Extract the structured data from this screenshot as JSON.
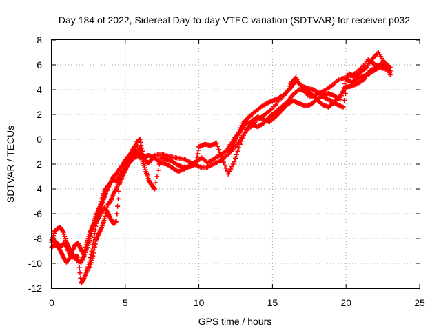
{
  "chart_data": {
    "type": "scatter",
    "title": "Day 184 of 2022, Sidereal Day-to-day VTEC variation (SDTVAR) for receiver p032",
    "xlabel": "GPS time / hours",
    "ylabel": "SDTVAR / TECUs",
    "xlim": [
      0,
      25
    ],
    "ylim": [
      -12,
      8
    ],
    "x_ticks": [
      "0",
      "5",
      "10",
      "15",
      "20",
      "25"
    ],
    "y_ticks": [
      "-12",
      "-10",
      "-8",
      "-6",
      "-4",
      "-2",
      "0",
      "2",
      "4",
      "6",
      "8"
    ],
    "grid": true,
    "marker": "+",
    "color": "#ff0000",
    "series": [
      {
        "points": [
          [
            0.0,
            -8.3
          ],
          [
            0.2,
            -7.4
          ],
          [
            0.4,
            -7.2
          ],
          [
            0.6,
            -7.1
          ],
          [
            0.8,
            -7.5
          ],
          [
            1.0,
            -8.3
          ],
          [
            1.2,
            -8.8
          ],
          [
            1.4,
            -9.3
          ],
          [
            1.6,
            -9.6
          ],
          [
            1.8,
            -9.8
          ],
          [
            2.0,
            -9.9
          ],
          [
            2.2,
            -9.4
          ],
          [
            2.4,
            -8.7
          ],
          [
            2.6,
            -8.0
          ],
          [
            2.8,
            -7.0
          ],
          [
            3.0,
            -6.2
          ],
          [
            3.2,
            -5.6
          ],
          [
            3.4,
            -5.2
          ],
          [
            3.6,
            -4.6
          ],
          [
            3.8,
            -4.0
          ],
          [
            4.0,
            -3.5
          ],
          [
            4.2,
            -3.2
          ],
          [
            4.4,
            -3.4
          ],
          [
            4.6,
            -3.0
          ],
          [
            4.8,
            -2.7
          ],
          [
            5.0,
            -2.3
          ],
          [
            5.2,
            -1.8
          ],
          [
            5.4,
            -1.3
          ],
          [
            5.6,
            -0.8
          ],
          [
            5.8,
            -0.2
          ],
          [
            6.0,
            0.0
          ],
          [
            6.2,
            -1.2
          ],
          [
            6.4,
            -1.8
          ],
          [
            6.6,
            -1.9
          ],
          [
            6.8,
            -1.6
          ],
          [
            7.0,
            -1.3
          ],
          [
            7.5,
            -1.2
          ],
          [
            8.0,
            -1.4
          ],
          [
            8.5,
            -1.5
          ],
          [
            9.0,
            -1.6
          ],
          [
            9.5,
            -1.9
          ],
          [
            10.0,
            -2.2
          ],
          [
            10.5,
            -2.3
          ],
          [
            11.0,
            -2.0
          ],
          [
            11.5,
            -1.7
          ],
          [
            12.0,
            -1.2
          ],
          [
            12.5,
            -0.6
          ],
          [
            13.0,
            0.3
          ],
          [
            13.5,
            1.0
          ],
          [
            14.0,
            1.6
          ],
          [
            14.5,
            2.0
          ],
          [
            15.0,
            2.5
          ],
          [
            15.5,
            3.2
          ],
          [
            16.0,
            3.8
          ],
          [
            16.3,
            4.6
          ],
          [
            16.6,
            5.0
          ],
          [
            17.0,
            4.2
          ],
          [
            17.5,
            3.4
          ],
          [
            18.0,
            3.6
          ],
          [
            18.5,
            3.9
          ],
          [
            19.0,
            4.3
          ],
          [
            19.5,
            4.8
          ],
          [
            20.0,
            5.0
          ],
          [
            20.5,
            5.2
          ],
          [
            21.0,
            5.7
          ],
          [
            21.5,
            6.4
          ],
          [
            22.0,
            6.0
          ],
          [
            22.5,
            5.7
          ],
          [
            23.0,
            5.5
          ]
        ]
      },
      {
        "points": [
          [
            0.0,
            -8.7
          ],
          [
            0.2,
            -8.5
          ],
          [
            0.4,
            -8.6
          ],
          [
            0.6,
            -9.0
          ],
          [
            0.8,
            -9.5
          ],
          [
            1.0,
            -9.9
          ],
          [
            1.2,
            -9.6
          ],
          [
            1.4,
            -9.0
          ],
          [
            1.6,
            -8.5
          ],
          [
            1.8,
            -8.4
          ],
          [
            2.0,
            -8.9
          ],
          [
            2.2,
            -9.3
          ],
          [
            2.4,
            -8.3
          ],
          [
            2.6,
            -7.5
          ],
          [
            2.8,
            -7.0
          ],
          [
            3.0,
            -6.7
          ],
          [
            3.2,
            -6.3
          ],
          [
            3.4,
            -5.8
          ],
          [
            3.6,
            -5.5
          ],
          [
            3.8,
            -5.9
          ],
          [
            4.0,
            -6.4
          ],
          [
            4.2,
            -6.8
          ],
          [
            4.4,
            -6.6
          ],
          [
            4.6,
            -3.6
          ],
          [
            4.8,
            -3.0
          ],
          [
            5.0,
            -2.5
          ],
          [
            5.2,
            -2.0
          ],
          [
            5.4,
            -1.5
          ],
          [
            5.6,
            -1.2
          ],
          [
            5.8,
            -1.0
          ],
          [
            6.0,
            -0.7
          ],
          [
            6.2,
            -1.8
          ],
          [
            6.4,
            -2.6
          ],
          [
            6.6,
            -3.3
          ],
          [
            6.8,
            -3.7
          ],
          [
            7.0,
            -4.0
          ],
          [
            7.4,
            -1.5
          ],
          [
            7.8,
            -1.6
          ],
          [
            8.2,
            -1.8
          ],
          [
            8.6,
            -2.1
          ],
          [
            9.0,
            -2.3
          ],
          [
            9.4,
            -2.2
          ],
          [
            9.8,
            -2.0
          ],
          [
            10.0,
            -0.6
          ],
          [
            10.4,
            -0.4
          ],
          [
            10.8,
            -0.5
          ],
          [
            11.2,
            -0.3
          ],
          [
            11.6,
            -1.6
          ],
          [
            12.0,
            -2.8
          ],
          [
            12.4,
            -1.8
          ],
          [
            12.8,
            -0.4
          ],
          [
            13.2,
            0.8
          ],
          [
            13.6,
            1.5
          ],
          [
            14.0,
            1.8
          ],
          [
            14.4,
            1.6
          ],
          [
            14.8,
            1.4
          ],
          [
            15.2,
            1.8
          ],
          [
            15.6,
            2.3
          ],
          [
            16.0,
            2.8
          ],
          [
            16.4,
            3.1
          ],
          [
            16.8,
            2.9
          ],
          [
            17.2,
            2.7
          ],
          [
            17.6,
            2.8
          ],
          [
            18.0,
            3.2
          ],
          [
            18.4,
            3.5
          ],
          [
            18.8,
            3.7
          ],
          [
            19.2,
            3.5
          ],
          [
            19.6,
            3.2
          ],
          [
            20.0,
            4.8
          ],
          [
            20.4,
            4.6
          ],
          [
            20.8,
            4.9
          ],
          [
            21.2,
            5.1
          ],
          [
            21.6,
            5.3
          ],
          [
            22.0,
            5.6
          ],
          [
            22.4,
            5.9
          ],
          [
            22.8,
            6.0
          ],
          [
            23.0,
            5.2
          ]
        ]
      },
      {
        "points": [
          [
            0.0,
            -8.1
          ],
          [
            0.2,
            -8.2
          ],
          [
            0.4,
            -8.4
          ],
          [
            0.6,
            -8.7
          ],
          [
            0.8,
            -8.4
          ],
          [
            1.0,
            -8.6
          ],
          [
            1.2,
            -9.2
          ],
          [
            1.4,
            -9.5
          ],
          [
            1.6,
            -9.4
          ],
          [
            1.8,
            -9.5
          ],
          [
            2.0,
            -11.6
          ],
          [
            2.2,
            -11.2
          ],
          [
            2.4,
            -10.6
          ],
          [
            2.6,
            -9.8
          ],
          [
            2.8,
            -8.5
          ],
          [
            3.0,
            -7.0
          ],
          [
            3.2,
            -5.9
          ],
          [
            3.4,
            -4.8
          ],
          [
            3.6,
            -4.1
          ],
          [
            3.8,
            -3.8
          ],
          [
            4.0,
            -3.5
          ],
          [
            4.2,
            -3.0
          ],
          [
            4.4,
            -2.8
          ],
          [
            4.6,
            -2.4
          ],
          [
            4.8,
            -2.1
          ],
          [
            5.0,
            -1.7
          ],
          [
            5.2,
            -1.4
          ],
          [
            5.4,
            -1.1
          ],
          [
            5.6,
            -0.6
          ],
          [
            5.8,
            -0.5
          ],
          [
            6.0,
            -1.5
          ],
          [
            6.2,
            -1.4
          ],
          [
            6.6,
            -1.3
          ],
          [
            7.0,
            -1.5
          ],
          [
            7.4,
            -1.9
          ],
          [
            7.8,
            -2.0
          ],
          [
            8.2,
            -2.3
          ],
          [
            8.6,
            -2.6
          ],
          [
            9.0,
            -2.4
          ],
          [
            9.4,
            -2.1
          ],
          [
            9.8,
            -1.8
          ],
          [
            10.2,
            -1.5
          ],
          [
            10.6,
            -1.9
          ],
          [
            11.0,
            -1.6
          ],
          [
            11.4,
            -1.3
          ],
          [
            11.8,
            -1.0
          ],
          [
            12.2,
            -0.3
          ],
          [
            12.6,
            0.4
          ],
          [
            13.0,
            1.3
          ],
          [
            13.4,
            1.8
          ],
          [
            13.8,
            2.2
          ],
          [
            14.2,
            2.6
          ],
          [
            14.6,
            2.9
          ],
          [
            15.0,
            3.1
          ],
          [
            15.4,
            3.3
          ],
          [
            15.8,
            3.6
          ],
          [
            16.2,
            4.1
          ],
          [
            16.6,
            4.7
          ],
          [
            17.0,
            4.3
          ],
          [
            17.4,
            4.1
          ],
          [
            17.8,
            4.0
          ],
          [
            18.2,
            3.7
          ],
          [
            18.6,
            3.3
          ],
          [
            19.0,
            3.1
          ],
          [
            19.4,
            2.8
          ],
          [
            19.8,
            2.6
          ],
          [
            20.2,
            5.3
          ],
          [
            20.6,
            5.0
          ],
          [
            21.0,
            5.4
          ],
          [
            21.4,
            5.8
          ],
          [
            21.8,
            6.5
          ],
          [
            22.2,
            7.0
          ],
          [
            22.6,
            6.2
          ],
          [
            23.0,
            5.8
          ]
        ]
      },
      {
        "points": [
          [
            2.6,
            -10.3
          ],
          [
            2.8,
            -9.4
          ],
          [
            3.0,
            -8.2
          ],
          [
            3.2,
            -7.6
          ],
          [
            3.4,
            -7.1
          ],
          [
            3.6,
            -6.4
          ],
          [
            3.8,
            -5.3
          ],
          [
            4.0,
            -5.0
          ],
          [
            4.2,
            -4.4
          ],
          [
            4.4,
            -4.0
          ],
          [
            4.6,
            -3.2
          ],
          [
            4.8,
            -2.7
          ],
          [
            5.2,
            -2.0
          ],
          [
            5.6,
            -1.5
          ],
          [
            6.0,
            -1.2
          ],
          [
            12.0,
            -1.0
          ],
          [
            12.2,
            -0.8
          ],
          [
            12.4,
            -0.2
          ],
          [
            12.6,
            0.3
          ],
          [
            12.8,
            0.6
          ],
          [
            13.0,
            1.0
          ],
          [
            13.2,
            1.4
          ],
          [
            13.6,
            1.2
          ],
          [
            14.0,
            1.0
          ],
          [
            14.4,
            1.3
          ],
          [
            14.8,
            1.8
          ],
          [
            15.2,
            2.2
          ],
          [
            15.6,
            2.6
          ],
          [
            16.0,
            3.0
          ],
          [
            16.4,
            3.6
          ],
          [
            16.8,
            4.0
          ],
          [
            17.2,
            3.9
          ],
          [
            17.6,
            3.7
          ],
          [
            18.0,
            3.2
          ],
          [
            18.4,
            2.8
          ],
          [
            18.8,
            2.6
          ],
          [
            19.2,
            3.0
          ],
          [
            19.6,
            3.5
          ],
          [
            20.0,
            4.2
          ],
          [
            20.4,
            4.3
          ],
          [
            20.8,
            4.5
          ],
          [
            21.2,
            4.8
          ],
          [
            21.6,
            5.5
          ],
          [
            22.0,
            5.8
          ],
          [
            22.4,
            6.1
          ],
          [
            22.8,
            5.7
          ]
        ]
      }
    ]
  }
}
